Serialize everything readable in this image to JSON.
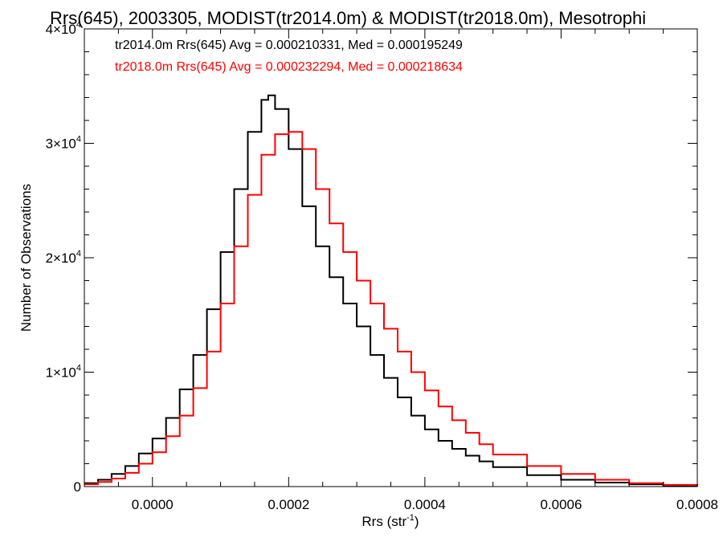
{
  "chart_data": {
    "type": "histogram-step",
    "title": "Rrs(645), 2003305, MODIST(tr2014.0m) & MODIST(tr2018.0m), Mesotrophi",
    "xlabel_main": "Rrs (str",
    "xlabel_sup": "-1",
    "xlabel_close": ")",
    "ylabel": "Number of Observations",
    "xlim": [
      -0.0001,
      0.0008
    ],
    "ylim": [
      0,
      40000
    ],
    "grid": false,
    "x_ticks": [
      {
        "value": 0.0,
        "label": "0.0000"
      },
      {
        "value": 0.0002,
        "label": "0.0002"
      },
      {
        "value": 0.0004,
        "label": "0.0004"
      },
      {
        "value": 0.0006,
        "label": "0.0006"
      },
      {
        "value": 0.0008,
        "label": "0.0008"
      }
    ],
    "y_ticks": [
      {
        "value": 0,
        "label": "0",
        "exp": ""
      },
      {
        "value": 10000,
        "label": "1×10",
        "exp": "4"
      },
      {
        "value": 20000,
        "label": "2×10",
        "exp": "4"
      },
      {
        "value": 30000,
        "label": "3×10",
        "exp": "4"
      },
      {
        "value": 40000,
        "label": "4×10",
        "exp": "4"
      }
    ],
    "series": [
      {
        "name": "tr2014.0m Rrs(645) Avg = 0.000210331, Med = 0.000195249",
        "color": "#000000",
        "x": [
          -0.0001,
          -8e-05,
          -6e-05,
          -4e-05,
          -2e-05,
          0.0,
          2e-05,
          4e-05,
          6e-05,
          8e-05,
          0.0001,
          0.00012,
          0.00014,
          0.00016,
          0.00017,
          0.00018,
          0.0002,
          0.00022,
          0.00024,
          0.00026,
          0.00028,
          0.0003,
          0.00032,
          0.00034,
          0.00036,
          0.00038,
          0.0004,
          0.00042,
          0.00044,
          0.00046,
          0.00048,
          0.0005,
          0.00055,
          0.0006,
          0.00065,
          0.0007,
          0.00075,
          0.0008
        ],
        "y": [
          300,
          600,
          1100,
          1800,
          2900,
          4200,
          6000,
          8500,
          11500,
          15500,
          20500,
          26000,
          31000,
          33800,
          34200,
          33000,
          29500,
          24500,
          21000,
          18300,
          16000,
          14000,
          11500,
          9500,
          7800,
          6200,
          5000,
          4000,
          3300,
          2700,
          2200,
          1700,
          1000,
          600,
          350,
          200,
          100,
          50
        ]
      },
      {
        "name": "tr2018.0m Rrs(645) Avg = 0.000232294, Med = 0.000218634",
        "color": "#ff0000",
        "x": [
          -0.0001,
          -8e-05,
          -6e-05,
          -4e-05,
          -2e-05,
          0.0,
          2e-05,
          4e-05,
          6e-05,
          8e-05,
          0.0001,
          0.00012,
          0.00014,
          0.00016,
          0.00018,
          0.0002,
          0.00022,
          0.00024,
          0.00026,
          0.00028,
          0.0003,
          0.00032,
          0.00034,
          0.00036,
          0.00038,
          0.0004,
          0.00042,
          0.00044,
          0.00046,
          0.00048,
          0.0005,
          0.00055,
          0.0006,
          0.00065,
          0.0007,
          0.00075,
          0.0008
        ],
        "y": [
          200,
          400,
          700,
          1200,
          2000,
          3000,
          4400,
          6200,
          8600,
          11800,
          16000,
          21000,
          25500,
          29000,
          30800,
          31000,
          29500,
          26000,
          23000,
          20500,
          18000,
          16000,
          13800,
          11800,
          10000,
          8400,
          7000,
          5800,
          4700,
          3700,
          2800,
          1800,
          1100,
          600,
          300,
          150,
          70
        ]
      }
    ]
  }
}
